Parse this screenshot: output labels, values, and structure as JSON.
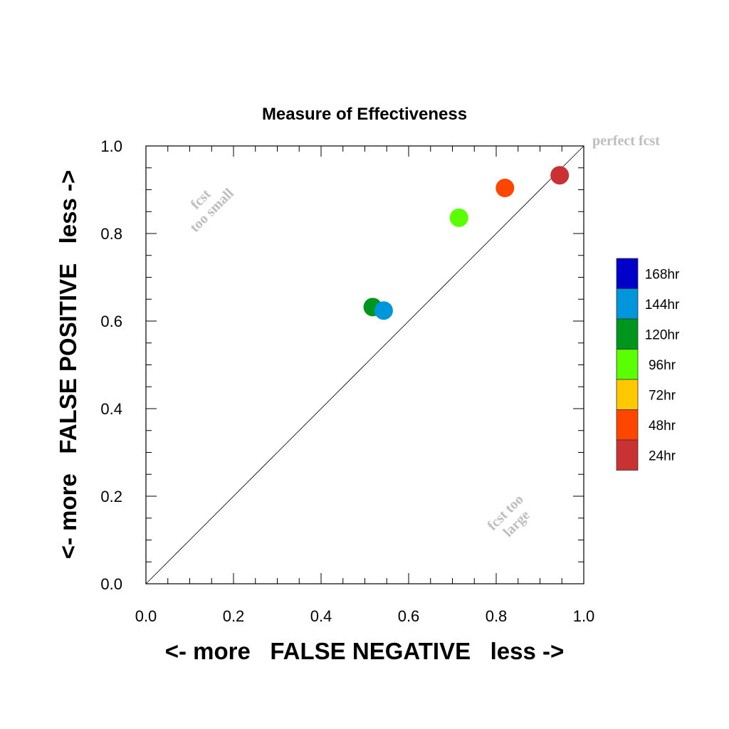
{
  "chart_data": {
    "type": "scatter",
    "title": "Measure of Effectiveness",
    "xlabel": "<- more   FALSE NEGATIVE   less ->",
    "ylabel": "<- more   FALSE POSITIVE   less ->",
    "xlim": [
      0.0,
      1.0
    ],
    "ylim": [
      0.0,
      1.0
    ],
    "xticks": [
      "0.0",
      "0.2",
      "0.4",
      "0.6",
      "0.8",
      "1.0"
    ],
    "yticks": [
      "0.0",
      "0.2",
      "0.4",
      "0.6",
      "0.8",
      "1.0"
    ],
    "grid": false,
    "reference_line": "diagonal",
    "annotations": {
      "perfect": "perfect fcst",
      "too_small_line1": "fcst",
      "too_small_line2": "too small",
      "too_large_line1": "fcst too",
      "too_large_line2": "large"
    },
    "legend_position": "right",
    "legend": [
      {
        "label": "168hr",
        "color": "#0000c8"
      },
      {
        "label": "144hr",
        "color": "#0096dc"
      },
      {
        "label": "120hr",
        "color": "#00961e"
      },
      {
        "label": "96hr",
        "color": "#5aff00"
      },
      {
        "label": "72hr",
        "color": "#ffc800"
      },
      {
        "label": "48hr",
        "color": "#ff4600"
      },
      {
        "label": "24hr",
        "color": "#c83232"
      }
    ],
    "points": [
      {
        "series": "24hr",
        "x": 0.945,
        "y": 0.933,
        "color": "#c83232"
      },
      {
        "series": "48hr",
        "x": 0.82,
        "y": 0.904,
        "color": "#ff4600"
      },
      {
        "series": "96hr",
        "x": 0.715,
        "y": 0.836,
        "color": "#5aff00"
      },
      {
        "series": "120hr",
        "x": 0.518,
        "y": 0.632,
        "color": "#00961e"
      },
      {
        "series": "144hr",
        "x": 0.543,
        "y": 0.624,
        "color": "#0096dc"
      }
    ]
  }
}
